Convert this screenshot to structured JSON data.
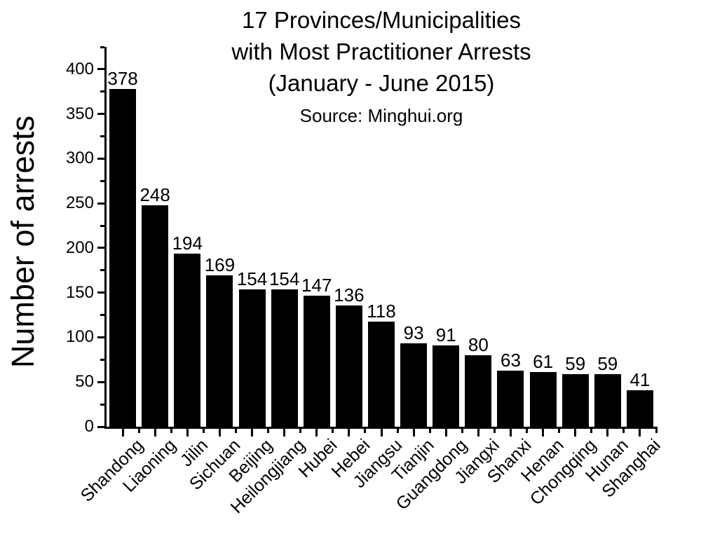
{
  "chart_data": {
    "type": "bar",
    "title_lines": [
      "17 Provinces/Municipalities",
      "with Most Practitioner Arrests",
      "(January - June 2015)"
    ],
    "subtitle": "Source: Minghui.org",
    "ylabel": "Number of arrests",
    "xlabel": "",
    "categories": [
      "Shandong",
      "Liaoning",
      "Jilin",
      "Sichuan",
      "Beijing",
      "Heilongjiang",
      "Hubei",
      "Hebei",
      "Jiangsu",
      "Tianjin",
      "Guangdong",
      "Jiangxi",
      "Shanxi",
      "Henan",
      "Chongqing",
      "Hunan",
      "Shanghai"
    ],
    "values": [
      378,
      248,
      194,
      169,
      154,
      154,
      147,
      136,
      118,
      93,
      91,
      80,
      63,
      61,
      59,
      59,
      41
    ],
    "ylim": [
      0,
      425
    ],
    "y_major_ticks": [
      0,
      50,
      100,
      150,
      200,
      250,
      300,
      350,
      400
    ],
    "y_minor_tick_step": 25,
    "x_tick_label_rotation_deg": 45,
    "grid": false,
    "legend": false,
    "bar_color": "#000000",
    "axis_color": "#000000",
    "text_color": "#000000",
    "background_color": "#ffffff"
  }
}
